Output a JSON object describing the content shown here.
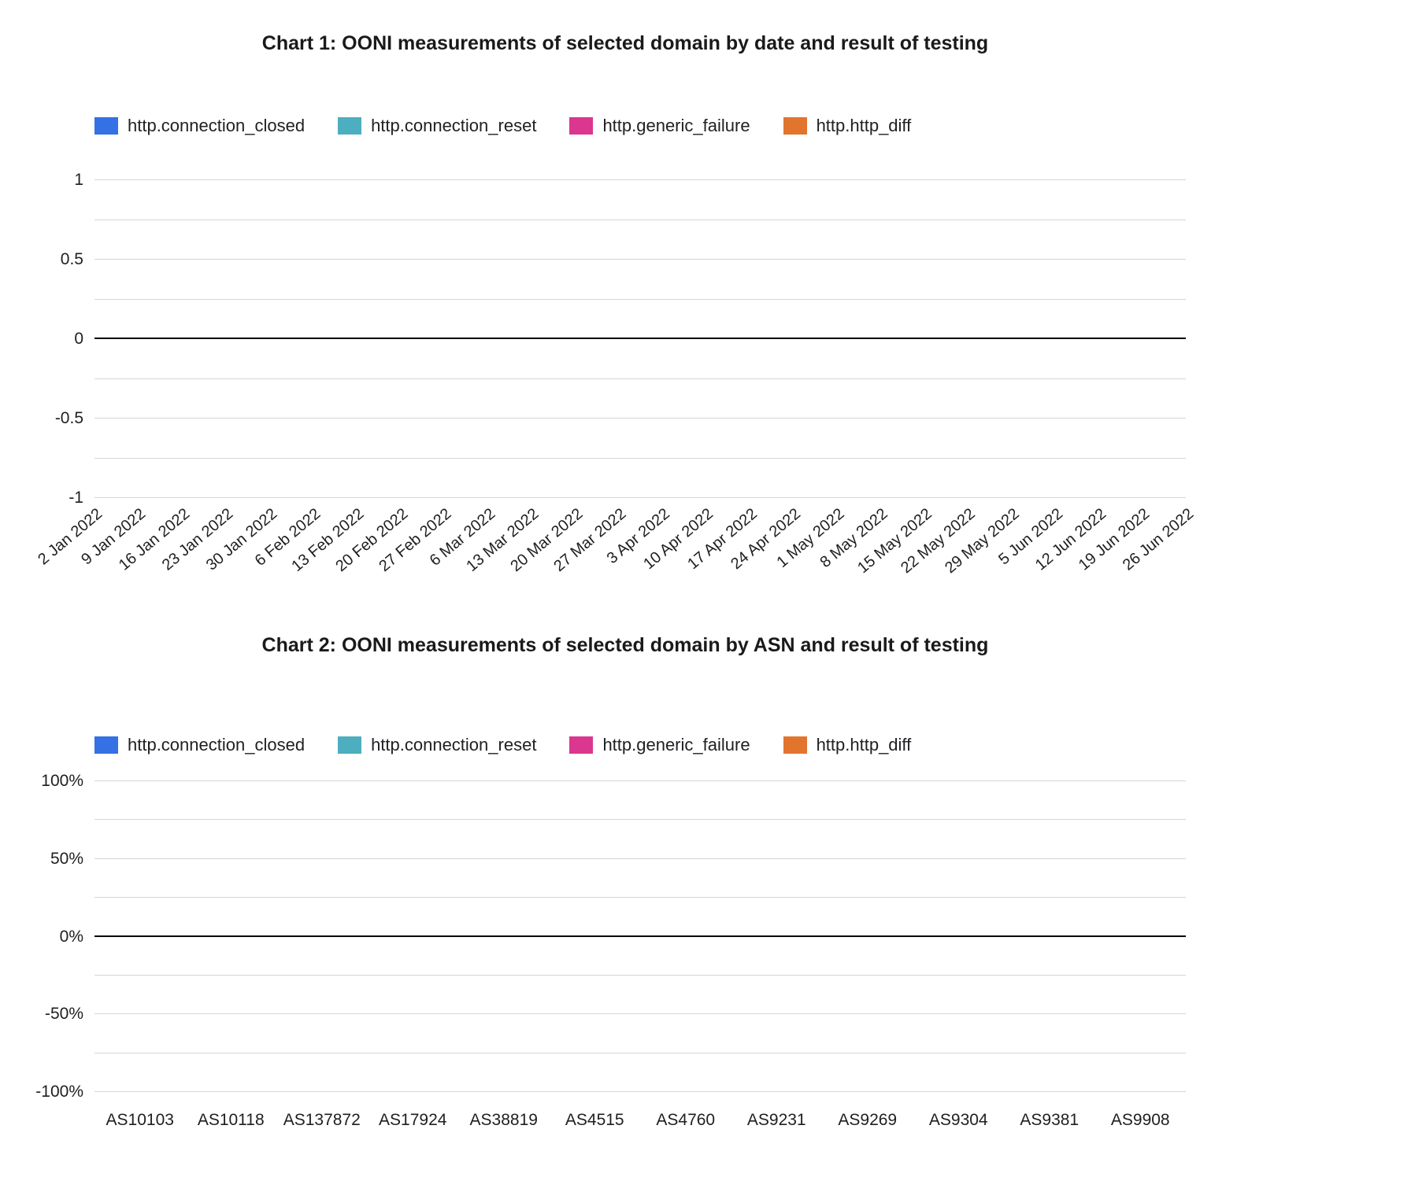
{
  "palette": {
    "grid": "#d6d6d6",
    "zero_line": "#000000",
    "background": "#ffffff"
  },
  "legend": {
    "items": [
      {
        "label": "http.connection_closed",
        "color": "#3371e4"
      },
      {
        "label": "http.connection_reset",
        "color": "#4daec0"
      },
      {
        "label": "http.generic_failure",
        "color": "#db3790"
      },
      {
        "label": "http.http_diff",
        "color": "#e2752e"
      }
    ]
  },
  "chart1": {
    "title": "Chart 1: OONI measurements of selected domain by date and result of testing",
    "gridlines": [
      {
        "label": "1",
        "emphasis": "major"
      },
      {
        "label": "",
        "emphasis": "minor"
      },
      {
        "label": "0.5",
        "emphasis": "major"
      },
      {
        "label": "",
        "emphasis": "minor"
      },
      {
        "label": "0",
        "emphasis": "zero"
      },
      {
        "label": "",
        "emphasis": "minor"
      },
      {
        "label": "-0.5",
        "emphasis": "major"
      },
      {
        "label": "",
        "emphasis": "minor"
      },
      {
        "label": "-1",
        "emphasis": "major"
      }
    ],
    "xticks": [
      "2 Jan 2022",
      "9 Jan 2022",
      "16 Jan 2022",
      "23 Jan 2022",
      "30 Jan 2022",
      "6 Feb 2022",
      "13 Feb 2022",
      "20 Feb 2022",
      "27 Feb 2022",
      "6 Mar 2022",
      "13 Mar 2022",
      "20 Mar 2022",
      "27 Mar 2022",
      "3 Apr 2022",
      "10 Apr 2022",
      "17 Apr 2022",
      "24 Apr 2022",
      "1 May 2022",
      "8 May 2022",
      "15 May 2022",
      "22 May 2022",
      "29 May 2022",
      "5 Jun 2022",
      "12 Jun 2022",
      "19 Jun 2022",
      "26 Jun 2022"
    ]
  },
  "chart2": {
    "title": "Chart 2: OONI measurements of selected domain by ASN and result of testing",
    "gridlines": [
      {
        "label": "100%",
        "emphasis": "major"
      },
      {
        "label": "",
        "emphasis": "minor"
      },
      {
        "label": "50%",
        "emphasis": "major"
      },
      {
        "label": "",
        "emphasis": "minor"
      },
      {
        "label": "0%",
        "emphasis": "zero"
      },
      {
        "label": "",
        "emphasis": "minor"
      },
      {
        "label": "-50%",
        "emphasis": "major"
      },
      {
        "label": "",
        "emphasis": "minor"
      },
      {
        "label": "-100%",
        "emphasis": "major"
      }
    ],
    "xticks": [
      "AS10103",
      "AS10118",
      "AS137872",
      "AS17924",
      "AS38819",
      "AS4515",
      "AS4760",
      "AS9231",
      "AS9269",
      "AS9304",
      "AS9381",
      "AS9908"
    ]
  },
  "chart_data": [
    {
      "type": "bar",
      "title": "Chart 1: OONI measurements of selected domain by date and result of testing",
      "categories": [
        "2 Jan 2022",
        "9 Jan 2022",
        "16 Jan 2022",
        "23 Jan 2022",
        "30 Jan 2022",
        "6 Feb 2022",
        "13 Feb 2022",
        "20 Feb 2022",
        "27 Feb 2022",
        "6 Mar 2022",
        "13 Mar 2022",
        "20 Mar 2022",
        "27 Mar 2022",
        "3 Apr 2022",
        "10 Apr 2022",
        "17 Apr 2022",
        "24 Apr 2022",
        "1 May 2022",
        "8 May 2022",
        "15 May 2022",
        "22 May 2022",
        "29 May 2022",
        "5 Jun 2022",
        "12 Jun 2022",
        "19 Jun 2022",
        "26 Jun 2022"
      ],
      "series": [
        {
          "name": "http.connection_closed",
          "values": []
        },
        {
          "name": "http.connection_reset",
          "values": []
        },
        {
          "name": "http.generic_failure",
          "values": []
        },
        {
          "name": "http.http_diff",
          "values": []
        }
      ],
      "xlabel": "",
      "ylabel": "",
      "ylim": [
        -1,
        1
      ],
      "yticks": [
        1,
        0.5,
        0,
        -0.5,
        -1
      ],
      "grid": true,
      "legend_position": "top-left",
      "note": "chart area is empty — no bars rendered for any date"
    },
    {
      "type": "bar",
      "title": "Chart 2: OONI measurements of selected domain by ASN and result of testing",
      "categories": [
        "AS10103",
        "AS10118",
        "AS137872",
        "AS17924",
        "AS38819",
        "AS4515",
        "AS4760",
        "AS9231",
        "AS9269",
        "AS9304",
        "AS9381",
        "AS9908"
      ],
      "series": [
        {
          "name": "http.connection_closed",
          "values": []
        },
        {
          "name": "http.connection_reset",
          "values": []
        },
        {
          "name": "http.generic_failure",
          "values": []
        },
        {
          "name": "http.http_diff",
          "values": []
        }
      ],
      "xlabel": "",
      "ylabel": "",
      "ylim": [
        -100,
        100
      ],
      "yticks": [
        "100%",
        "50%",
        "0%",
        "-50%",
        "-100%"
      ],
      "grid": true,
      "legend_position": "top-left",
      "note": "chart area is empty — no bars rendered for any ASN"
    }
  ]
}
